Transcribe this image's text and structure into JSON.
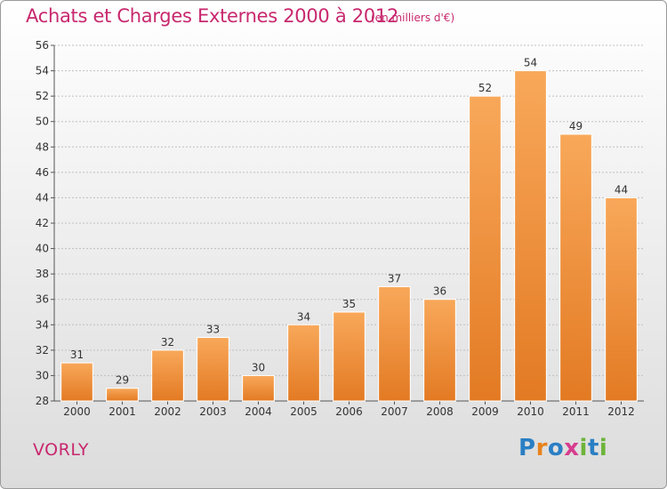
{
  "header": {
    "title": "Achats et Charges Externes 2000 à 2012",
    "subtitle": "(en milliers d'€)"
  },
  "footer": {
    "commune": "VORLY",
    "logo_letters": [
      "P",
      "r",
      "o",
      "x",
      "i",
      "t",
      "i"
    ]
  },
  "colors": {
    "title": "#c8286e",
    "bar_light": "#f8a85a",
    "bar_dark": "#e37a23",
    "grid": "#bfbfbf"
  },
  "chart_data": {
    "type": "bar",
    "title": "Achats et Charges Externes 2000 à 2012",
    "subtitle": "(en milliers d'€)",
    "categories": [
      "2000",
      "2001",
      "2002",
      "2003",
      "2004",
      "2005",
      "2006",
      "2007",
      "2008",
      "2009",
      "2010",
      "2011",
      "2012"
    ],
    "values": [
      31,
      29,
      32,
      33,
      30,
      34,
      35,
      37,
      36,
      52,
      54,
      49,
      44
    ],
    "ylim": [
      28,
      56
    ],
    "yticks": [
      28,
      30,
      32,
      34,
      36,
      38,
      40,
      42,
      44,
      46,
      48,
      50,
      52,
      54,
      56
    ],
    "grid": true,
    "legend": "none"
  }
}
